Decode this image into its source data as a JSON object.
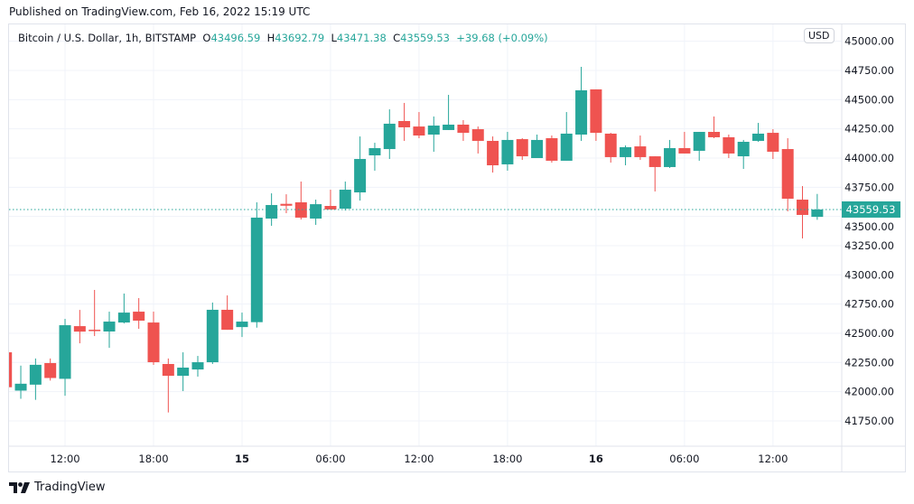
{
  "header": {
    "published": "Published on TradingView.com, Feb 16, 2022 15:19 UTC"
  },
  "legend": {
    "symbol": "Bitcoin / U.S. Dollar, 1h, BITSTAMP",
    "o_label": "O",
    "o": "43496.59",
    "h_label": "H",
    "h": "43692.79",
    "l_label": "L",
    "l": "43471.38",
    "c_label": "C",
    "c": "43559.53",
    "change": "+39.68 (+0.09%)"
  },
  "currency": "USD",
  "footer": {
    "brand": "TradingView"
  },
  "colors": {
    "up": "#26a69a",
    "down": "#ef5350",
    "grid": "#f0f3fa",
    "text": "#131722"
  },
  "chart_data": {
    "type": "candlestick",
    "title": "Bitcoin / U.S. Dollar, 1h, BITSTAMP",
    "ylim": [
      41600,
      45100
    ],
    "grid": true,
    "y_ticks": [
      "45000.00",
      "44750.00",
      "44500.00",
      "44250.00",
      "44000.00",
      "43750.00",
      "43500.00",
      "43250.00",
      "43000.00",
      "42750.00",
      "42500.00",
      "42250.00",
      "42000.00",
      "41750.00"
    ],
    "x_ticks": [
      {
        "label": "12:00",
        "hour": 4,
        "bold": false
      },
      {
        "label": "18:00",
        "hour": 10,
        "bold": false
      },
      {
        "label": "15",
        "hour": 16,
        "bold": true
      },
      {
        "label": "06:00",
        "hour": 22,
        "bold": false
      },
      {
        "label": "12:00",
        "hour": 28,
        "bold": false
      },
      {
        "label": "18:00",
        "hour": 34,
        "bold": false
      },
      {
        "label": "16",
        "hour": 40,
        "bold": true
      },
      {
        "label": "06:00",
        "hour": 46,
        "bold": false
      },
      {
        "label": "12:00",
        "hour": 52,
        "bold": false
      }
    ],
    "last_price": {
      "value": 43559.53,
      "label": "43559.53"
    },
    "candles": [
      {
        "t": "02-14 08:00",
        "o": 42337,
        "h": 42350,
        "l": 42030,
        "c": 42038
      },
      {
        "t": "02-14 09:00",
        "o": 42009,
        "h": 42223,
        "l": 41939,
        "c": 42068
      },
      {
        "t": "02-14 10:00",
        "o": 42060,
        "h": 42284,
        "l": 41930,
        "c": 42230
      },
      {
        "t": "02-14 11:00",
        "o": 42245,
        "h": 42284,
        "l": 42095,
        "c": 42117
      },
      {
        "t": "02-14 12:00",
        "o": 42110,
        "h": 42623,
        "l": 41965,
        "c": 42569
      },
      {
        "t": "02-14 13:00",
        "o": 42561,
        "h": 42700,
        "l": 42414,
        "c": 42514
      },
      {
        "t": "02-14 14:00",
        "o": 42530,
        "h": 42871,
        "l": 42476,
        "c": 42522
      },
      {
        "t": "02-14 15:00",
        "o": 42515,
        "h": 42685,
        "l": 42375,
        "c": 42600
      },
      {
        "t": "02-14 16:00",
        "o": 42592,
        "h": 42840,
        "l": 42584,
        "c": 42677
      },
      {
        "t": "02-14 17:00",
        "o": 42685,
        "h": 42801,
        "l": 42538,
        "c": 42608
      },
      {
        "t": "02-14 18:00",
        "o": 42592,
        "h": 42685,
        "l": 42229,
        "c": 42252
      },
      {
        "t": "02-14 19:00",
        "o": 42237,
        "h": 42284,
        "l": 41822,
        "c": 42136
      },
      {
        "t": "02-14 20:00",
        "o": 42136,
        "h": 42337,
        "l": 42005,
        "c": 42206
      },
      {
        "t": "02-14 21:00",
        "o": 42190,
        "h": 42306,
        "l": 42129,
        "c": 42252
      },
      {
        "t": "02-14 22:00",
        "o": 42252,
        "h": 42763,
        "l": 42237,
        "c": 42701
      },
      {
        "t": "02-14 23:00",
        "o": 42701,
        "h": 42824,
        "l": 42530,
        "c": 42530
      },
      {
        "t": "02-15 00:00",
        "o": 42553,
        "h": 42677,
        "l": 42468,
        "c": 42600
      },
      {
        "t": "02-15 01:00",
        "o": 42595,
        "h": 43621,
        "l": 42548,
        "c": 43490
      },
      {
        "t": "02-15 02:00",
        "o": 43482,
        "h": 43698,
        "l": 43420,
        "c": 43598
      },
      {
        "t": "02-15 03:00",
        "o": 43608,
        "h": 43690,
        "l": 43528,
        "c": 43592
      },
      {
        "t": "02-15 04:00",
        "o": 43621,
        "h": 43799,
        "l": 43474,
        "c": 43490
      },
      {
        "t": "02-15 05:00",
        "o": 43482,
        "h": 43644,
        "l": 43428,
        "c": 43605
      },
      {
        "t": "02-15 06:00",
        "o": 43590,
        "h": 43729,
        "l": 43559,
        "c": 43560
      },
      {
        "t": "02-15 07:00",
        "o": 43567,
        "h": 43799,
        "l": 43551,
        "c": 43729
      },
      {
        "t": "02-15 08:00",
        "o": 43706,
        "h": 44185,
        "l": 43636,
        "c": 43992
      },
      {
        "t": "02-15 09:00",
        "o": 44023,
        "h": 44131,
        "l": 43892,
        "c": 44085
      },
      {
        "t": "02-15 10:00",
        "o": 44077,
        "h": 44417,
        "l": 43992,
        "c": 44294
      },
      {
        "t": "02-15 11:00",
        "o": 44317,
        "h": 44472,
        "l": 44147,
        "c": 44263
      },
      {
        "t": "02-15 12:00",
        "o": 44270,
        "h": 44394,
        "l": 44170,
        "c": 44193
      },
      {
        "t": "02-15 13:00",
        "o": 44201,
        "h": 44356,
        "l": 44054,
        "c": 44278
      },
      {
        "t": "02-15 14:00",
        "o": 44240,
        "h": 44541,
        "l": 44240,
        "c": 44286
      },
      {
        "t": "02-15 15:00",
        "o": 44286,
        "h": 44325,
        "l": 44147,
        "c": 44216
      },
      {
        "t": "02-15 16:00",
        "o": 44247,
        "h": 44270,
        "l": 44039,
        "c": 44147
      },
      {
        "t": "02-15 17:00",
        "o": 44147,
        "h": 44185,
        "l": 43876,
        "c": 43938
      },
      {
        "t": "02-15 18:00",
        "o": 43946,
        "h": 44224,
        "l": 43892,
        "c": 44155
      },
      {
        "t": "02-15 19:00",
        "o": 44162,
        "h": 44170,
        "l": 43984,
        "c": 44015
      },
      {
        "t": "02-15 20:00",
        "o": 44000,
        "h": 44201,
        "l": 44000,
        "c": 44155
      },
      {
        "t": "02-15 21:00",
        "o": 44170,
        "h": 44193,
        "l": 43961,
        "c": 43977
      },
      {
        "t": "02-15 22:00",
        "o": 43977,
        "h": 44394,
        "l": 43977,
        "c": 44209
      },
      {
        "t": "02-15 23:00",
        "o": 44201,
        "h": 44781,
        "l": 44147,
        "c": 44580
      },
      {
        "t": "02-16 00:00",
        "o": 44588,
        "h": 44588,
        "l": 44147,
        "c": 44216
      },
      {
        "t": "02-16 01:00",
        "o": 44209,
        "h": 44216,
        "l": 43961,
        "c": 44008
      },
      {
        "t": "02-16 02:00",
        "o": 44008,
        "h": 44108,
        "l": 43938,
        "c": 44093
      },
      {
        "t": "02-16 03:00",
        "o": 44100,
        "h": 44193,
        "l": 43984,
        "c": 44008
      },
      {
        "t": "02-16 04:00",
        "o": 44015,
        "h": 44015,
        "l": 43714,
        "c": 43923
      },
      {
        "t": "02-16 05:00",
        "o": 43923,
        "h": 44155,
        "l": 43915,
        "c": 44085
      },
      {
        "t": "02-16 06:00",
        "o": 44085,
        "h": 44224,
        "l": 44039,
        "c": 44039
      },
      {
        "t": "02-16 07:00",
        "o": 44062,
        "h": 44224,
        "l": 43977,
        "c": 44224
      },
      {
        "t": "02-16 08:00",
        "o": 44224,
        "h": 44356,
        "l": 44170,
        "c": 44178
      },
      {
        "t": "02-16 09:00",
        "o": 44178,
        "h": 44201,
        "l": 44000,
        "c": 44039
      },
      {
        "t": "02-16 10:00",
        "o": 44015,
        "h": 44155,
        "l": 43907,
        "c": 44139
      },
      {
        "t": "02-16 11:00",
        "o": 44147,
        "h": 44301,
        "l": 44139,
        "c": 44209
      },
      {
        "t": "02-16 12:00",
        "o": 44216,
        "h": 44247,
        "l": 43992,
        "c": 44054
      },
      {
        "t": "02-16 13:00",
        "o": 44077,
        "h": 44170,
        "l": 43544,
        "c": 43652
      },
      {
        "t": "02-16 14:00",
        "o": 43644,
        "h": 43760,
        "l": 43312,
        "c": 43513
      },
      {
        "t": "02-16 15:00",
        "o": 43496.59,
        "h": 43692.79,
        "l": 43471.38,
        "c": 43559.53
      }
    ]
  }
}
